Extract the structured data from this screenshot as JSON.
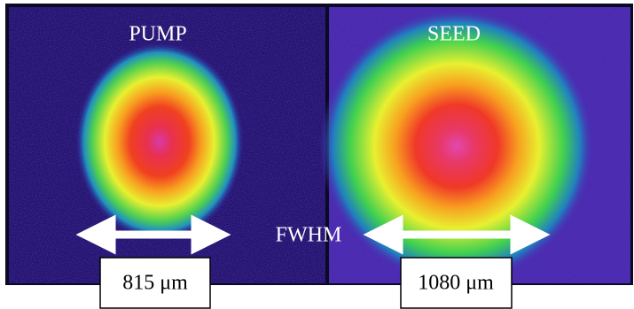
{
  "panels": [
    {
      "title": "PUMP",
      "width_label": "815 μm"
    },
    {
      "title": "SEED",
      "width_label": "1080 μm"
    }
  ],
  "center_label": "FWHM"
}
